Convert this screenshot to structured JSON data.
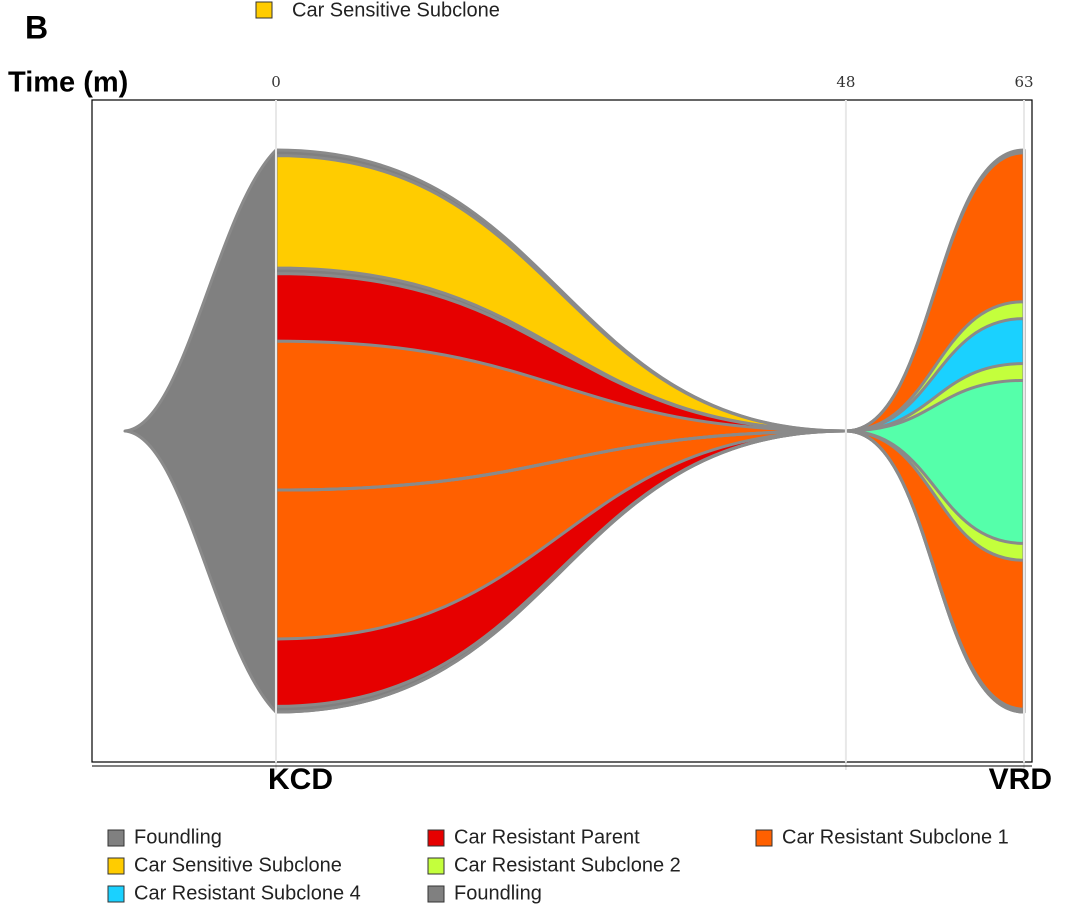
{
  "chart_data": {
    "type": "fish",
    "panel_label": "B",
    "title": "Time (m)",
    "x": [
      0,
      48,
      63
    ],
    "xlim": [
      0,
      63
    ],
    "xticks": [
      0,
      48,
      63
    ],
    "bottom_labels": [
      "KCD",
      "VRD"
    ],
    "series": [
      {
        "name": "Foundling",
        "color": "#808080",
        "parent": null,
        "values": [
          3,
          0,
          1
        ]
      },
      {
        "name": "Car Sensitive Subclone",
        "color": "#ffcc00",
        "parent": 0,
        "values": [
          20,
          0,
          0
        ]
      },
      {
        "name": "Car Resistant Subclone 4",
        "color": "#1ad1ff",
        "parent": 4,
        "values": [
          0,
          0,
          8
        ]
      },
      {
        "name": "Car Resistant Parent",
        "color": "#e60000",
        "parent": 0,
        "values": [
          24,
          0,
          0
        ]
      },
      {
        "name": "Car Resistant Subclone 2",
        "color": "#c4ff3c",
        "parent": 6,
        "values": [
          0,
          0,
          9
        ]
      },
      {
        "name": "Foundling",
        "color": "#808080",
        "parent": 0,
        "values": [
          0,
          0,
          0
        ]
      },
      {
        "name": "Car Resistant Subclone 1",
        "color": "#ff6000",
        "parent": 3,
        "values": [
          53,
          0,
          53
        ]
      },
      {
        "name": null,
        "color": "#55ffaa",
        "parent": 4,
        "values": [
          0,
          0,
          29
        ]
      }
    ]
  }
}
